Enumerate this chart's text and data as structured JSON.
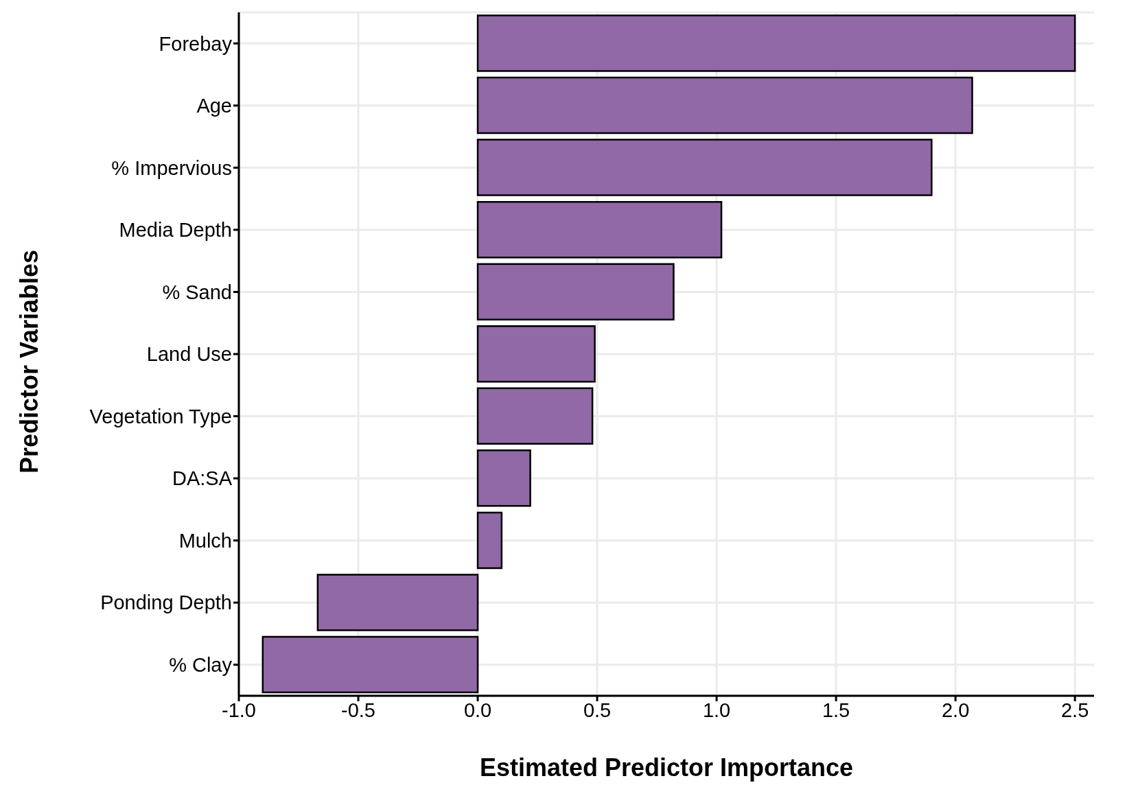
{
  "chart_data": {
    "type": "bar",
    "orientation": "horizontal",
    "xlabel": "Estimated Predictor Importance",
    "ylabel": "Predictor Variables",
    "categories": [
      "Forebay",
      "Age",
      "% Impervious",
      "Media Depth",
      "% Sand",
      "Land Use",
      "Vegetation Type",
      "DA:SA",
      "Mulch",
      "Ponding Depth",
      "% Clay"
    ],
    "values": [
      2.5,
      2.07,
      1.9,
      1.02,
      0.82,
      0.49,
      0.48,
      0.22,
      0.1,
      -0.67,
      -0.9
    ],
    "color": "#9069a6",
    "xlim": [
      -1,
      2.58
    ],
    "xticks": [
      {
        "value": -1,
        "label": "-1.0"
      },
      -0.5,
      {
        "value": 0,
        "label": "0.0"
      },
      0.5,
      {
        "value": 1,
        "label": "1.0"
      },
      1.5,
      {
        "value": 2,
        "label": "2.0"
      },
      2.5
    ],
    "grid": true,
    "legend": false
  }
}
